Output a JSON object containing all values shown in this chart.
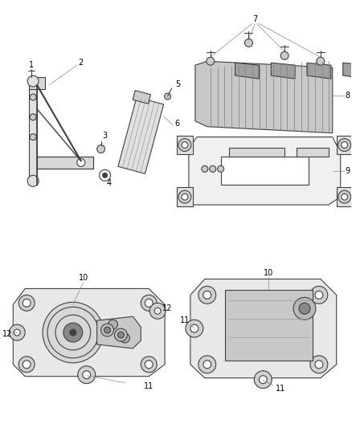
{
  "bg_color": "#ffffff",
  "line_color": "#404040",
  "text_color": "#000000",
  "fig_width": 4.38,
  "fig_height": 5.33,
  "dpi": 100
}
